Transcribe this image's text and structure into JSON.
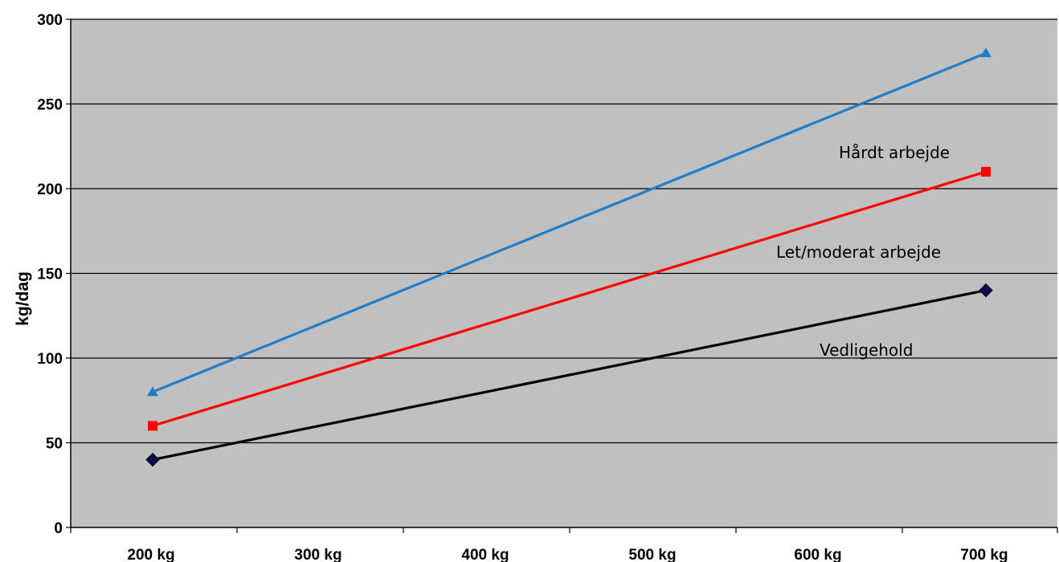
{
  "chart_data": {
    "type": "line",
    "ylabel": "kg/dag",
    "xlabel": "",
    "categories": [
      "200 kg",
      "300 kg",
      "400 kg",
      "500 kg",
      "600 kg",
      "700 kg"
    ],
    "yticks": [
      "0",
      "50",
      "100",
      "150",
      "200",
      "250",
      "300"
    ],
    "ylim": [
      0,
      300
    ],
    "grid": true,
    "series": [
      {
        "x": [
          200,
          700
        ],
        "values": [
          80,
          280
        ],
        "color": "#1f7ec9",
        "marker": "triangle"
      },
      {
        "x": [
          200,
          700
        ],
        "values": [
          60,
          210
        ],
        "color": "#ff0000",
        "marker": "square"
      },
      {
        "x": [
          200,
          700
        ],
        "values": [
          40,
          140
        ],
        "color": "#000000",
        "marker": "diamond"
      }
    ],
    "annotations": [
      {
        "text": "Hårdt arbejde",
        "x": 700,
        "y": 222
      },
      {
        "text": "Let/moderat arbejde",
        "x": 700,
        "y": 163
      },
      {
        "text": "Vedligehold",
        "x": 700,
        "y": 100
      }
    ],
    "plot_background": "#c0c0c0"
  }
}
